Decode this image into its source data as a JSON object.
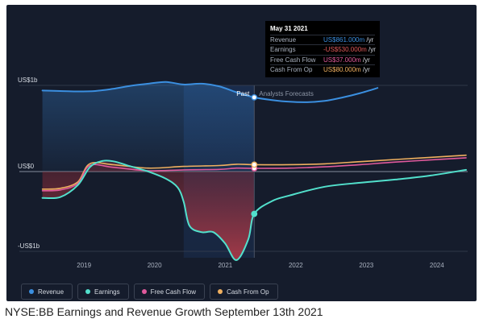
{
  "chart_data": {
    "type": "line",
    "x_range": [
      "2018-03-31",
      "2024-05-31"
    ],
    "y_range_musd": [
      -1100,
      1100
    ],
    "y_ticks": [
      {
        "label": "US$1b",
        "value": 1000
      },
      {
        "label": "US$0",
        "value": 0
      },
      {
        "label": "-US$1b",
        "value": -1000
      }
    ],
    "x_ticks": [
      {
        "label": "2019",
        "date": "2019-01-01"
      },
      {
        "label": "2020",
        "date": "2020-01-01"
      },
      {
        "label": "2021",
        "date": "2021-01-01"
      },
      {
        "label": "2022",
        "date": "2022-01-01"
      },
      {
        "label": "2023",
        "date": "2023-01-01"
      },
      {
        "label": "2024",
        "date": "2024-01-01"
      }
    ],
    "divider_date": "2021-05-31",
    "shaded_start_date": "2020-05-31",
    "past_label": "Past",
    "forecast_label": "Analysts Forecasts",
    "series": [
      {
        "name": "Revenue",
        "color": "#3b8fe0",
        "points": [
          [
            "2018-05-31",
            940
          ],
          [
            "2018-08-31",
            935
          ],
          [
            "2018-11-30",
            930
          ],
          [
            "2019-02-28",
            935
          ],
          [
            "2019-05-31",
            960
          ],
          [
            "2019-08-31",
            995
          ],
          [
            "2019-11-30",
            1020
          ],
          [
            "2020-02-29",
            1040
          ],
          [
            "2020-05-31",
            1010
          ],
          [
            "2020-08-31",
            1020
          ],
          [
            "2020-11-30",
            990
          ],
          [
            "2021-02-28",
            920
          ],
          [
            "2021-05-31",
            861
          ],
          [
            "2021-08-31",
            830
          ],
          [
            "2021-11-30",
            810
          ],
          [
            "2022-02-28",
            805
          ],
          [
            "2022-05-31",
            820
          ],
          [
            "2022-08-31",
            860
          ],
          [
            "2022-11-30",
            910
          ],
          [
            "2023-02-28",
            970
          ]
        ]
      },
      {
        "name": "Earnings",
        "color": "#52e0cc",
        "points": [
          [
            "2018-05-31",
            -330
          ],
          [
            "2018-08-31",
            -320
          ],
          [
            "2018-11-30",
            -170
          ],
          [
            "2019-01-31",
            50
          ],
          [
            "2019-03-31",
            120
          ],
          [
            "2019-05-31",
            120
          ],
          [
            "2019-08-31",
            60
          ],
          [
            "2019-11-30",
            0
          ],
          [
            "2020-02-29",
            -90
          ],
          [
            "2020-04-30",
            -200
          ],
          [
            "2020-05-31",
            -380
          ],
          [
            "2020-06-30",
            -680
          ],
          [
            "2020-08-31",
            -760
          ],
          [
            "2020-10-31",
            -760
          ],
          [
            "2020-12-31",
            -900
          ],
          [
            "2021-02-28",
            -1110
          ],
          [
            "2021-04-30",
            -850
          ],
          [
            "2021-05-31",
            -530
          ],
          [
            "2021-08-31",
            -370
          ],
          [
            "2021-11-30",
            -300
          ],
          [
            "2022-05-31",
            -190
          ],
          [
            "2022-11-30",
            -140
          ],
          [
            "2023-05-31",
            -100
          ],
          [
            "2023-11-30",
            -50
          ],
          [
            "2024-05-31",
            20
          ]
        ]
      },
      {
        "name": "Free Cash Flow",
        "color": "#e05a9c",
        "points": [
          [
            "2018-05-31",
            -240
          ],
          [
            "2018-08-31",
            -230
          ],
          [
            "2018-11-30",
            -150
          ],
          [
            "2019-01-31",
            70
          ],
          [
            "2019-05-31",
            50
          ],
          [
            "2019-11-30",
            10
          ],
          [
            "2020-05-31",
            20
          ],
          [
            "2020-11-30",
            25
          ],
          [
            "2021-02-28",
            40
          ],
          [
            "2021-05-31",
            37
          ],
          [
            "2021-11-30",
            40
          ],
          [
            "2022-05-31",
            55
          ],
          [
            "2022-11-30",
            80
          ],
          [
            "2023-05-31",
            110
          ],
          [
            "2024-05-31",
            160
          ]
        ]
      },
      {
        "name": "Cash From Op",
        "color": "#f0b060",
        "points": [
          [
            "2018-05-31",
            -220
          ],
          [
            "2018-08-31",
            -210
          ],
          [
            "2018-11-30",
            -130
          ],
          [
            "2019-01-31",
            90
          ],
          [
            "2019-05-31",
            80
          ],
          [
            "2019-11-30",
            40
          ],
          [
            "2020-05-31",
            60
          ],
          [
            "2020-11-30",
            70
          ],
          [
            "2021-02-28",
            85
          ],
          [
            "2021-05-31",
            80
          ],
          [
            "2021-11-30",
            80
          ],
          [
            "2022-05-31",
            90
          ],
          [
            "2022-11-30",
            115
          ],
          [
            "2023-05-31",
            140
          ],
          [
            "2024-05-31",
            190
          ]
        ]
      }
    ]
  },
  "tooltip": {
    "date": "May 31 2021",
    "rows": [
      {
        "label": "Revenue",
        "value": "US$861.000m",
        "unit": " /yr",
        "color": "#3b8fe0"
      },
      {
        "label": "Earnings",
        "value": "-US$530.000m",
        "unit": " /yr",
        "color": "#e05a5a"
      },
      {
        "label": "Free Cash Flow",
        "value": "US$37.000m",
        "unit": " /yr",
        "color": "#e05a9c"
      },
      {
        "label": "Cash From Op",
        "value": "US$80.000m",
        "unit": " /yr",
        "color": "#f0b060"
      }
    ]
  },
  "legend": [
    {
      "label": "Revenue",
      "color": "#3b8fe0"
    },
    {
      "label": "Earnings",
      "color": "#52e0cc"
    },
    {
      "label": "Free Cash Flow",
      "color": "#e05a9c"
    },
    {
      "label": "Cash From Op",
      "color": "#f0b060"
    }
  ],
  "caption": "NYSE:BB Earnings and Revenue Growth September 13th 2021"
}
